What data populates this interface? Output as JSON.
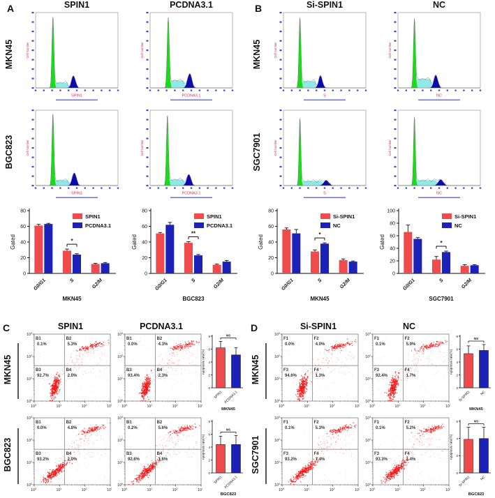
{
  "colors": {
    "red": "#EF4B4C",
    "blue": "#1C22B8",
    "scatter_red": "#F51515",
    "hist_green": "#17DD17",
    "hist_cyan": "#8FE9E9",
    "hist_navy": "#0A0AAE",
    "axis_blue": "#3A46D6",
    "channel_red": "#CC3060",
    "axis_black": "#111111"
  },
  "panel_a": {
    "letter": "A",
    "col_titles": [
      "SPIN1",
      "PCDNA3.1"
    ],
    "row_titles": [
      "MKN45",
      "BGC823"
    ]
  },
  "panel_b": {
    "letter": "B",
    "col_titles": [
      "Si-SPIN1",
      "NC"
    ],
    "row_titles": [
      "MKN45",
      "SGC7901"
    ]
  },
  "panel_c": {
    "letter": "C",
    "col_titles": [
      "SPIN1",
      "PCDNA3.1"
    ],
    "row_titles": [
      "MKN45",
      "BGC823"
    ]
  },
  "panel_d": {
    "letter": "D",
    "col_titles": [
      "Si-SPIN1",
      "NC"
    ],
    "row_titles": [
      "MKN45",
      "SGC7901"
    ]
  },
  "hist_ylabel": "Cell Number",
  "histograms": [
    {
      "channel": "SPIN1",
      "g1": {
        "c": 0.21,
        "h": 0.94,
        "s": 0.012
      },
      "s_level": 0.07,
      "s_end": 0.42,
      "g2": {
        "c": 0.46,
        "h": 0.16,
        "s": 0.024
      }
    },
    {
      "channel": "PCDNA3.1",
      "g1": {
        "c": 0.22,
        "h": 0.92,
        "s": 0.013
      },
      "s_level": 0.1,
      "s_end": 0.44,
      "g2": {
        "c": 0.48,
        "h": 0.19,
        "s": 0.026
      }
    },
    {
      "channel": "SPIN1",
      "g1": {
        "c": 0.21,
        "h": 0.95,
        "s": 0.012
      },
      "s_level": 0.07,
      "s_end": 0.43,
      "g2": {
        "c": 0.47,
        "h": 0.17,
        "s": 0.025
      }
    },
    {
      "channel": "PCDNA3.1",
      "g1": {
        "c": 0.21,
        "h": 0.93,
        "s": 0.012
      },
      "s_level": 0.08,
      "s_end": 0.44,
      "g2": {
        "c": 0.47,
        "h": 0.15,
        "s": 0.025
      }
    },
    {
      "channel": "S",
      "g1": {
        "c": 0.2,
        "h": 0.94,
        "s": 0.012
      },
      "s_level": 0.09,
      "s_end": 0.42,
      "g2": {
        "c": 0.45,
        "h": 0.16,
        "s": 0.023
      }
    },
    {
      "channel": "NC",
      "g1": {
        "c": 0.2,
        "h": 0.93,
        "s": 0.012
      },
      "s_level": 0.12,
      "s_end": 0.43,
      "g2": {
        "c": 0.46,
        "h": 0.17,
        "s": 0.024
      }
    },
    {
      "channel": "S",
      "g1": {
        "c": 0.2,
        "h": 0.9,
        "s": 0.011
      },
      "s_level": 0.06,
      "s_end": 0.5,
      "g2": {
        "c": 0.52,
        "h": 0.07,
        "s": 0.03
      }
    },
    {
      "channel": "NC",
      "g1": {
        "c": 0.2,
        "h": 0.92,
        "s": 0.011
      },
      "s_level": 0.07,
      "s_end": 0.5,
      "g2": {
        "c": 0.52,
        "h": 0.08,
        "s": 0.03
      }
    }
  ],
  "chart_data": [
    {
      "type": "bar",
      "subtype": "cellcycle",
      "categories": [
        "G0/G1",
        "S",
        "G2/M"
      ],
      "ylabel": "Gated",
      "ylim": [
        0,
        80
      ],
      "yticks": [
        0,
        20,
        40,
        60,
        80
      ],
      "series": [
        {
          "name": "SPIN1",
          "color": "red",
          "values": [
            61,
            29,
            12
          ],
          "errors": [
            1.5,
            2.0,
            0.8
          ]
        },
        {
          "name": "PCDNA3.1",
          "color": "blue",
          "values": [
            63,
            24,
            13
          ],
          "errors": [
            0.8,
            1.2,
            1.0
          ]
        }
      ],
      "sig": {
        "category_index": 1,
        "label": "*"
      },
      "sublabel": "MKN45",
      "legend_position": "top-right"
    },
    {
      "type": "bar",
      "subtype": "cellcycle",
      "categories": [
        "G0/G1",
        "S",
        "G2/M"
      ],
      "ylabel": "Gated",
      "ylim": [
        0,
        80
      ],
      "yticks": [
        0,
        20,
        40,
        60,
        80
      ],
      "series": [
        {
          "name": "SPIN1",
          "color": "red",
          "values": [
            51,
            39,
            11
          ],
          "errors": [
            1.2,
            1.5,
            0.8
          ]
        },
        {
          "name": "PCDNA3.1",
          "color": "blue",
          "values": [
            62,
            23,
            15
          ],
          "errors": [
            3.0,
            1.2,
            1.5
          ]
        }
      ],
      "sig": {
        "category_index": 1,
        "label": "**"
      },
      "sublabel": "BGC823",
      "legend_position": "top-right"
    },
    {
      "type": "bar",
      "subtype": "cellcycle",
      "categories": [
        "G0/G1",
        "S",
        "G2/M"
      ],
      "ylabel": "Gated",
      "ylim": [
        0,
        80
      ],
      "yticks": [
        0,
        20,
        40,
        60,
        80
      ],
      "series": [
        {
          "name": "Si-SPIN1",
          "color": "red",
          "values": [
            56,
            28,
            17
          ],
          "errors": [
            2.0,
            2.0,
            1.5
          ]
        },
        {
          "name": "NC",
          "color": "blue",
          "values": [
            51,
            38,
            15
          ],
          "errors": [
            5.0,
            1.0,
            0.8
          ]
        }
      ],
      "sig": {
        "category_index": 1,
        "label": "*"
      },
      "sublabel": "MKN45",
      "legend_position": "top-right"
    },
    {
      "type": "bar",
      "subtype": "cellcycle",
      "categories": [
        "G0/G1",
        "S",
        "G2/M"
      ],
      "ylabel": "Gated",
      "ylim": [
        0,
        100
      ],
      "yticks": [
        0,
        20,
        40,
        60,
        80,
        100
      ],
      "series": [
        {
          "name": "Si-SPIN1",
          "color": "red",
          "values": [
            66,
            22,
            12
          ],
          "errors": [
            11.0,
            5.0,
            2.0
          ]
        },
        {
          "name": "NC",
          "color": "blue",
          "values": [
            55,
            34,
            13
          ],
          "errors": [
            2.0,
            1.5,
            1.0
          ]
        }
      ],
      "sig": {
        "category_index": 1,
        "label": "*"
      },
      "sublabel": "SGC7901",
      "legend_position": "top-right"
    },
    {
      "type": "bar",
      "subtype": "apoptosis",
      "categories": [
        "SPIN1",
        "PCDNA3.1"
      ],
      "values": [
        6.2,
        5.1
      ],
      "errors": [
        1.0,
        1.1
      ],
      "bar_colors": [
        "red",
        "blue"
      ],
      "ylabel": "Apoptosis rate(%)",
      "ylim": [
        0,
        8
      ],
      "yticks": [
        0,
        2,
        4,
        6,
        8
      ],
      "sig": "NS",
      "sublabel": "MKN45"
    },
    {
      "type": "bar",
      "subtype": "apoptosis",
      "categories": [
        "SPIN1",
        "PCDNA3.1"
      ],
      "values": [
        4.4,
        4.4
      ],
      "errors": [
        1.3,
        1.4
      ],
      "bar_colors": [
        "red",
        "blue"
      ],
      "ylabel": "Apoptosis rate(%)",
      "ylim": [
        0,
        8
      ],
      "yticks": [
        0,
        2,
        4,
        6,
        8
      ],
      "sig": "NS",
      "sublabel": "BGC823"
    },
    {
      "type": "bar",
      "subtype": "apoptosis",
      "categories": [
        "Si-SPIN1",
        "NC"
      ],
      "values": [
        5.3,
        5.8
      ],
      "errors": [
        1.2,
        0.9
      ],
      "bar_colors": [
        "red",
        "blue"
      ],
      "ylabel": "Apoptosis rate(%)",
      "ylim": [
        0,
        8
      ],
      "yticks": [
        0,
        2,
        4,
        6,
        8
      ],
      "sig": "NS",
      "sublabel": "MKN45"
    },
    {
      "type": "bar",
      "subtype": "apoptosis",
      "categories": [
        "Si-SPIN1",
        "NC"
      ],
      "values": [
        3.9,
        4.0
      ],
      "errors": [
        1.4,
        1.3
      ],
      "bar_colors": [
        "red",
        "blue"
      ],
      "ylabel": "Apoptosis rate(%)",
      "ylim": [
        0,
        6
      ],
      "yticks": [
        0,
        2,
        4,
        6
      ],
      "sig": "NS",
      "sublabel": "BGC823"
    }
  ],
  "scatters": [
    {
      "tilt": "steep",
      "seed": 11,
      "tick_exponents": [
        0,
        1,
        2,
        3
      ],
      "quadrants": [
        {
          "id": "B1",
          "pct": "0.1%"
        },
        {
          "id": "B2",
          "pct": "5.3%"
        },
        {
          "id": "B3",
          "pct": "92.7%"
        },
        {
          "id": "B4",
          "pct": "2.0%"
        }
      ]
    },
    {
      "tilt": "steep",
      "seed": 22,
      "tick_exponents": [
        0,
        1,
        2,
        3
      ],
      "quadrants": [
        {
          "id": "B1",
          "pct": "0.0%"
        },
        {
          "id": "B2",
          "pct": "4.3%"
        },
        {
          "id": "B3",
          "pct": "93.4%"
        },
        {
          "id": "B4",
          "pct": "2.3%"
        }
      ]
    },
    {
      "tilt": "diag",
      "seed": 33,
      "tick_exponents": [
        0,
        1,
        2,
        3
      ],
      "quadrants": [
        {
          "id": "B1",
          "pct": "0.0%"
        },
        {
          "id": "B2",
          "pct": "4.8%"
        },
        {
          "id": "B3",
          "pct": "93.2%"
        },
        {
          "id": "B4",
          "pct": "2.0%"
        }
      ]
    },
    {
      "tilt": "diag",
      "seed": 44,
      "tick_exponents": [
        0,
        1,
        2,
        3
      ],
      "quadrants": [
        {
          "id": "B1",
          "pct": "0.2%"
        },
        {
          "id": "B2",
          "pct": "5.6%"
        },
        {
          "id": "B3",
          "pct": "92.6%"
        },
        {
          "id": "B4",
          "pct": "1.6%"
        }
      ]
    },
    {
      "tilt": "steep",
      "seed": 55,
      "tick_exponents": [
        0,
        1,
        2,
        3
      ],
      "quadrants": [
        {
          "id": "F1",
          "pct": "0.0%"
        },
        {
          "id": "F2",
          "pct": "4.0%"
        },
        {
          "id": "F3",
          "pct": "94.6%"
        },
        {
          "id": "F4",
          "pct": "1.3%"
        }
      ]
    },
    {
      "tilt": "steep",
      "seed": 66,
      "tick_exponents": [
        0,
        1,
        2,
        3
      ],
      "quadrants": [
        {
          "id": "F1",
          "pct": "0.1%"
        },
        {
          "id": "F2",
          "pct": "5.9%"
        },
        {
          "id": "F3",
          "pct": "92.4%"
        },
        {
          "id": "F4",
          "pct": "1.7%"
        }
      ]
    },
    {
      "tilt": "diag",
      "seed": 77,
      "tick_exponents": [
        0,
        1,
        2,
        3
      ],
      "quadrants": [
        {
          "id": "F1",
          "pct": "0.1%"
        },
        {
          "id": "F2",
          "pct": "5.3%"
        },
        {
          "id": "F3",
          "pct": "93.2%"
        },
        {
          "id": "F4",
          "pct": "1.4%"
        }
      ]
    },
    {
      "tilt": "diag",
      "seed": 88,
      "tick_exponents": [
        0,
        1,
        2,
        3
      ],
      "quadrants": [
        {
          "id": "F1",
          "pct": "0.1%"
        },
        {
          "id": "F2",
          "pct": "5.2%"
        },
        {
          "id": "F3",
          "pct": "93.3%"
        },
        {
          "id": "F4",
          "pct": "1.4%"
        }
      ]
    }
  ]
}
